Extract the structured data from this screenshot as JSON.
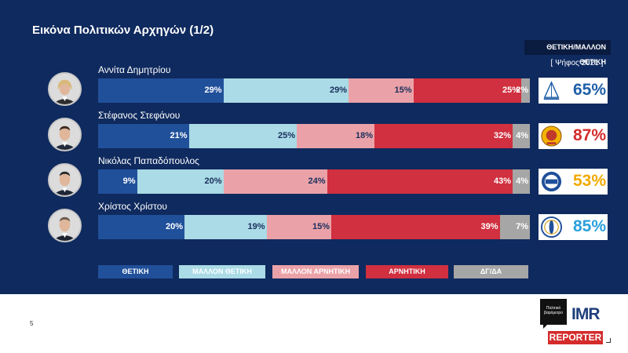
{
  "title": "Εικόνα Πολιτικών Αρχηγών (1/2)",
  "positive_header": "ΘΕΤΙΚΗ/ΜΑΛΛΟΝ ΘΕΤΙΚΗ",
  "vote_label": "[ Ψήφος 2021 ]",
  "page_number": "5",
  "logos": {
    "politiko": "Πολιτικό βαρόμετρο",
    "imr": "IMR",
    "reporter": "REPORTER"
  },
  "colors": {
    "ΘΕΤΙΚΗ": "#21509a",
    "ΜΑΛΛΟΝ ΘΕΤΙΚΗ": "#aadbe6",
    "ΜΑΛΛΟΝ ΑΡΝΗΤΙΚΗ": "#eaa2a8",
    "ΑΡΝΗΤΙΚΗ": "#d0303f",
    "ΔΓ/ΔΑ": "#a6a6a6"
  },
  "chart_data": {
    "type": "bar",
    "stacked": true,
    "orientation": "horizontal",
    "categories": [
      "Αννίτα Δημητρίου",
      "Στέφανος Στεφάνου",
      "Νικόλας Παπαδόπουλος",
      "Χρίστος Χρίστου"
    ],
    "series": [
      {
        "name": "ΘΕΤΙΚΗ",
        "values": [
          29,
          21,
          9,
          20
        ]
      },
      {
        "name": "ΜΑΛΛΟΝ ΘΕΤΙΚΗ",
        "values": [
          29,
          25,
          20,
          19
        ]
      },
      {
        "name": "ΜΑΛΛΟΝ ΑΡΝΗΤΙΚΗ",
        "values": [
          15,
          18,
          24,
          15
        ]
      },
      {
        "name": "ΑΡΝΗΤΙΚΗ",
        "values": [
          25,
          32,
          43,
          39
        ]
      },
      {
        "name": "ΔΓ/ΔΑ",
        "values": [
          2,
          4,
          4,
          7
        ]
      }
    ],
    "positive_totals": [
      65,
      87,
      53,
      85
    ],
    "positive_total_labels": [
      "65%",
      "87%",
      "53%",
      "85%"
    ],
    "total_colors": [
      "#1f5fa8",
      "#d42b2b",
      "#f2a900",
      "#2aa0dc"
    ],
    "legend_position": "bottom",
    "xlim": [
      0,
      100
    ]
  }
}
